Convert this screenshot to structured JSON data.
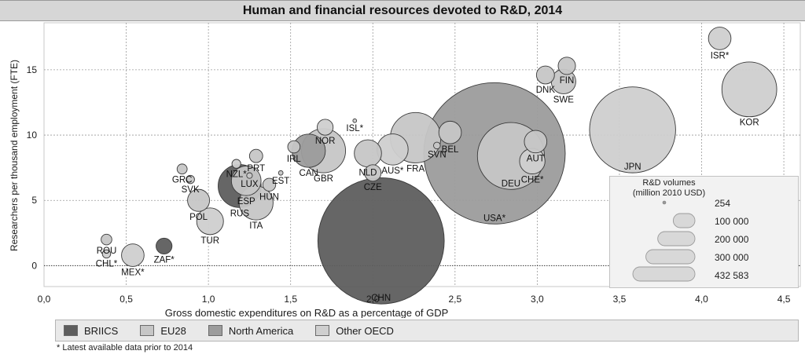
{
  "chart_data": {
    "type": "scatter",
    "title": "Human and financial resources devoted to R&D, 2014",
    "xlabel": "Gross domestic expenditures on  R&D as a percentage of GDP",
    "ylabel": "Researchers per thousand employment (FTE)",
    "xlim": [
      0,
      4.6
    ],
    "ylim": [
      -1.6,
      18.6
    ],
    "x_ticks": [
      0,
      0.5,
      1.0,
      1.5,
      2.0,
      2.5,
      3.0,
      3.5,
      4.0,
      4.5
    ],
    "x_tick_labels": [
      "0,0",
      "0,5",
      "1,0",
      "1,5",
      "2,0",
      "2,5",
      "3,0",
      "3,5",
      "4,0",
      "4,5"
    ],
    "y_ticks": [
      0,
      5,
      10,
      15
    ],
    "y_tick_labels": [
      "0",
      "5",
      "10",
      "15"
    ],
    "grid": true,
    "size_unit": "R&D volumes (million 2010 USD)",
    "groups": [
      {
        "name": "BRIICS",
        "color": "#5e5e5e"
      },
      {
        "name": "EU28",
        "color": "#c6c6c6"
      },
      {
        "name": "North America",
        "color": "#9c9c9c"
      },
      {
        "name": "Other OECD",
        "color": "#cfcfcf"
      }
    ],
    "points": [
      {
        "label": "ROU",
        "x": 0.38,
        "y": 2.0,
        "volume": 2500,
        "group": "EU28"
      },
      {
        "label": "CHL*",
        "x": 0.38,
        "y": 0.9,
        "volume": 1500,
        "group": "Other OECD"
      },
      {
        "label": "MEX*",
        "x": 0.54,
        "y": 0.8,
        "volume": 11000,
        "group": "Other OECD"
      },
      {
        "label": "ZAF*",
        "x": 0.73,
        "y": 1.5,
        "volume": 5500,
        "group": "BRIICS"
      },
      {
        "label": "GRC",
        "x": 0.84,
        "y": 7.4,
        "volume": 2200,
        "group": "EU28"
      },
      {
        "label": "SVK",
        "x": 0.89,
        "y": 6.6,
        "volume": 1500,
        "group": "EU28"
      },
      {
        "label": "POL",
        "x": 0.94,
        "y": 5.0,
        "volume": 10500,
        "group": "EU28"
      },
      {
        "label": "TUR",
        "x": 1.01,
        "y": 3.4,
        "volume": 15500,
        "group": "Other OECD"
      },
      {
        "label": "NZL*",
        "x": 1.17,
        "y": 7.8,
        "volume": 1700,
        "group": "Other OECD"
      },
      {
        "label": "PRT",
        "x": 1.29,
        "y": 8.4,
        "volume": 3800,
        "group": "EU28"
      },
      {
        "label": "LUX",
        "x": 1.25,
        "y": 6.9,
        "volume": 700,
        "group": "EU28"
      },
      {
        "label": "ESP",
        "x": 1.23,
        "y": 6.5,
        "volume": 19000,
        "group": "EU28"
      },
      {
        "label": "RUS",
        "x": 1.19,
        "y": 6.1,
        "volume": 40000,
        "group": "BRIICS"
      },
      {
        "label": "ITA",
        "x": 1.29,
        "y": 4.8,
        "volume": 25000,
        "group": "EU28"
      },
      {
        "label": "HUN",
        "x": 1.37,
        "y": 6.2,
        "volume": 3600,
        "group": "EU28"
      },
      {
        "label": "EST",
        "x": 1.44,
        "y": 7.1,
        "volume": 450,
        "group": "EU28"
      },
      {
        "label": "IRL",
        "x": 1.52,
        "y": 9.1,
        "volume": 3300,
        "group": "EU28"
      },
      {
        "label": "CAN",
        "x": 1.61,
        "y": 8.8,
        "volume": 24000,
        "group": "North America"
      },
      {
        "label": "GBR",
        "x": 1.7,
        "y": 8.8,
        "volume": 42000,
        "group": "EU28"
      },
      {
        "label": "NOR",
        "x": 1.71,
        "y": 10.6,
        "volume": 5500,
        "group": "Other OECD"
      },
      {
        "label": "ISL*",
        "x": 1.89,
        "y": 11.1,
        "volume": 300,
        "group": "Other OECD"
      },
      {
        "label": "NLD",
        "x": 1.97,
        "y": 8.6,
        "volume": 16000,
        "group": "EU28"
      },
      {
        "label": "CZE",
        "x": 2.0,
        "y": 7.1,
        "volume": 5900,
        "group": "EU28"
      },
      {
        "label": "AUS*",
        "x": 2.12,
        "y": 8.9,
        "volume": 21000,
        "group": "Other OECD"
      },
      {
        "label": "FRA",
        "x": 2.26,
        "y": 9.8,
        "volume": 55000,
        "group": "EU28"
      },
      {
        "label": "CHN",
        "x": 2.05,
        "y": 1.9,
        "volume": 345000,
        "group": "BRIICS"
      },
      {
        "label": "SVN",
        "x": 2.39,
        "y": 9.2,
        "volume": 1000,
        "group": "EU28"
      },
      {
        "label": "BEL",
        "x": 2.47,
        "y": 10.2,
        "volume": 11000,
        "group": "EU28"
      },
      {
        "label": "USA*",
        "x": 2.74,
        "y": 8.6,
        "volume": 432583,
        "group": "North America"
      },
      {
        "label": "DEU",
        "x": 2.84,
        "y": 8.4,
        "volume": 97000,
        "group": "EU28"
      },
      {
        "label": "AUT",
        "x": 2.99,
        "y": 9.5,
        "volume": 11000,
        "group": "EU28"
      },
      {
        "label": "CHE*",
        "x": 2.97,
        "y": 8.0,
        "volume": 14000,
        "group": "Other OECD"
      },
      {
        "label": "DNK",
        "x": 3.05,
        "y": 14.6,
        "volume": 7000,
        "group": "EU28"
      },
      {
        "label": "FIN",
        "x": 3.18,
        "y": 15.3,
        "volume": 6500,
        "group": "EU28"
      },
      {
        "label": "SWE",
        "x": 3.16,
        "y": 14.1,
        "volume": 13000,
        "group": "EU28"
      },
      {
        "label": "JPN",
        "x": 3.58,
        "y": 10.4,
        "volume": 160000,
        "group": "Other OECD"
      },
      {
        "label": "ISR*",
        "x": 4.11,
        "y": 17.4,
        "volume": 11000,
        "group": "Other OECD"
      },
      {
        "label": "KOR",
        "x": 4.29,
        "y": 13.5,
        "volume": 65000,
        "group": "Other OECD"
      }
    ]
  },
  "volume_legend": {
    "title_line1": "R&D volumes",
    "title_line2": "(million 2010 USD)",
    "entries": [
      {
        "label": "254",
        "volume": 254
      },
      {
        "label": "100 000",
        "volume": 100000
      },
      {
        "label": "200 000",
        "volume": 200000
      },
      {
        "label": "300 000",
        "volume": 300000
      },
      {
        "label": "432 583",
        "volume": 432583
      }
    ]
  },
  "footnote": "* Latest available data prior to 2014"
}
